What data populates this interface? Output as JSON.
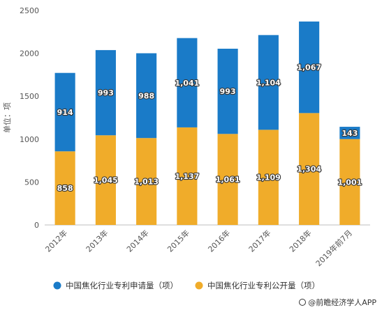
{
  "chart_data": {
    "type": "bar",
    "stacked": true,
    "categories": [
      "2012年",
      "2013年",
      "2014年",
      "2015年",
      "2016年",
      "2017年",
      "2018年",
      "2019年前7月"
    ],
    "series": [
      {
        "name": "中国焦化行业专利公开量（项）",
        "color": "#f0ac2a",
        "values": [
          858,
          1045,
          1013,
          1137,
          1061,
          1109,
          1304,
          1001
        ],
        "labels": [
          "858",
          "1,045",
          "1,013",
          "1,137",
          "1,061",
          "1,109",
          "1,304",
          "1,001"
        ]
      },
      {
        "name": "中国焦化行业专利申请量（项）",
        "color": "#1a7bc8",
        "values": [
          914,
          993,
          988,
          1041,
          993,
          1104,
          1067,
          143
        ],
        "labels": [
          "914",
          "993",
          "988",
          "1,041",
          "993",
          "1,104",
          "1,067",
          "143"
        ]
      }
    ],
    "ylabel": "单位：项",
    "ylim": [
      0,
      2500
    ],
    "yticks": [
      0,
      500,
      1000,
      1500,
      2000,
      2500
    ],
    "grid": false,
    "legend_position": "bottom"
  },
  "legend": [
    {
      "label": "中国焦化行业专利申请量（项）",
      "color": "#1a7bc8"
    },
    {
      "label": "中国焦化行业专利公开量（项）",
      "color": "#f0ac2a"
    }
  ],
  "credit": "@前瞻经济学人APP"
}
